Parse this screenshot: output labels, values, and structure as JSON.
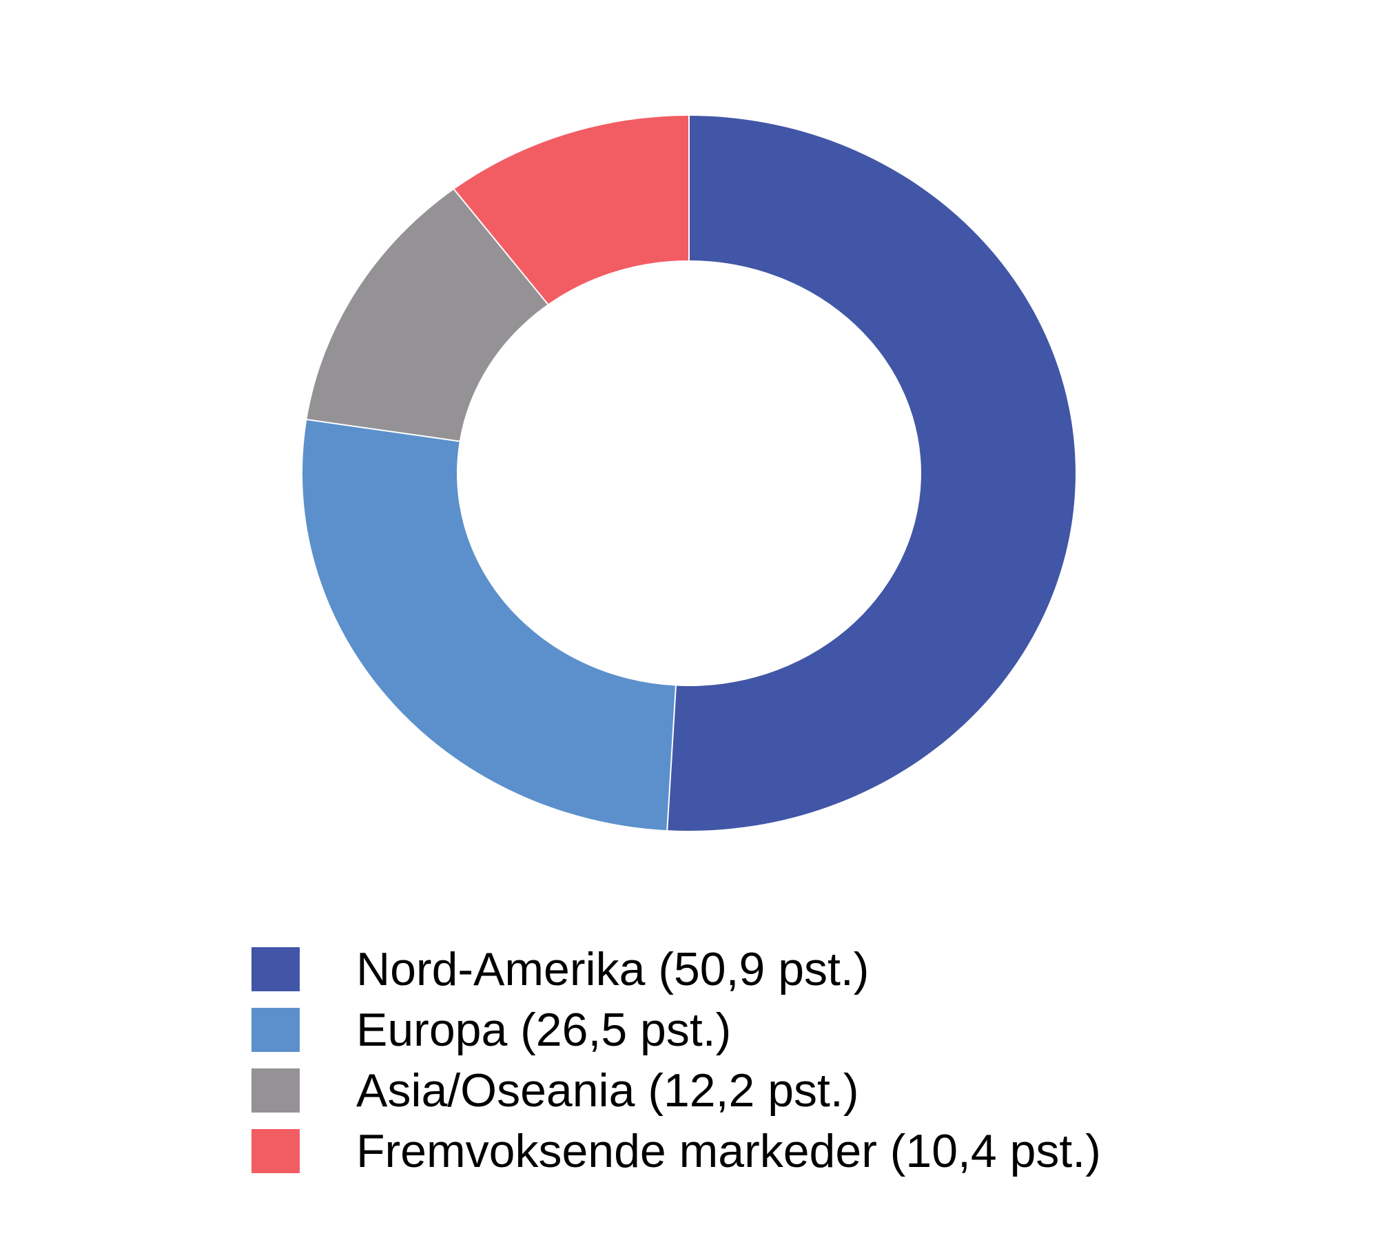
{
  "chart_data": {
    "type": "pie",
    "subtype": "donut",
    "direction": "clockwise",
    "start_angle_deg": 0,
    "unit": "pst.",
    "legend_position": "bottom-left",
    "background_color": "#FFFFFF",
    "separator_color": "#FFFFFF",
    "segments": [
      {
        "id": "nord-amerika",
        "label": "Nord-Amerika",
        "value": 50.9,
        "legend_label": "Nord-Amerika (50,9 pst.)",
        "color": "#4156A6"
      },
      {
        "id": "europa",
        "label": "Europa",
        "value": 26.5,
        "legend_label": "Europa (26,5 pst.)",
        "color": "#5B90CC"
      },
      {
        "id": "asia-oseania",
        "label": "Asia/Oseania",
        "value": 12.2,
        "legend_label": "Asia/Oseania (12,2 pst.)",
        "color": "#949295"
      },
      {
        "id": "fremvoksende-markeder",
        "label": "Fremvoksende markeder",
        "value": 10.4,
        "legend_label": "Fremvoksende markeder (10,4 pst.)",
        "color": "#F25D64"
      }
    ]
  }
}
